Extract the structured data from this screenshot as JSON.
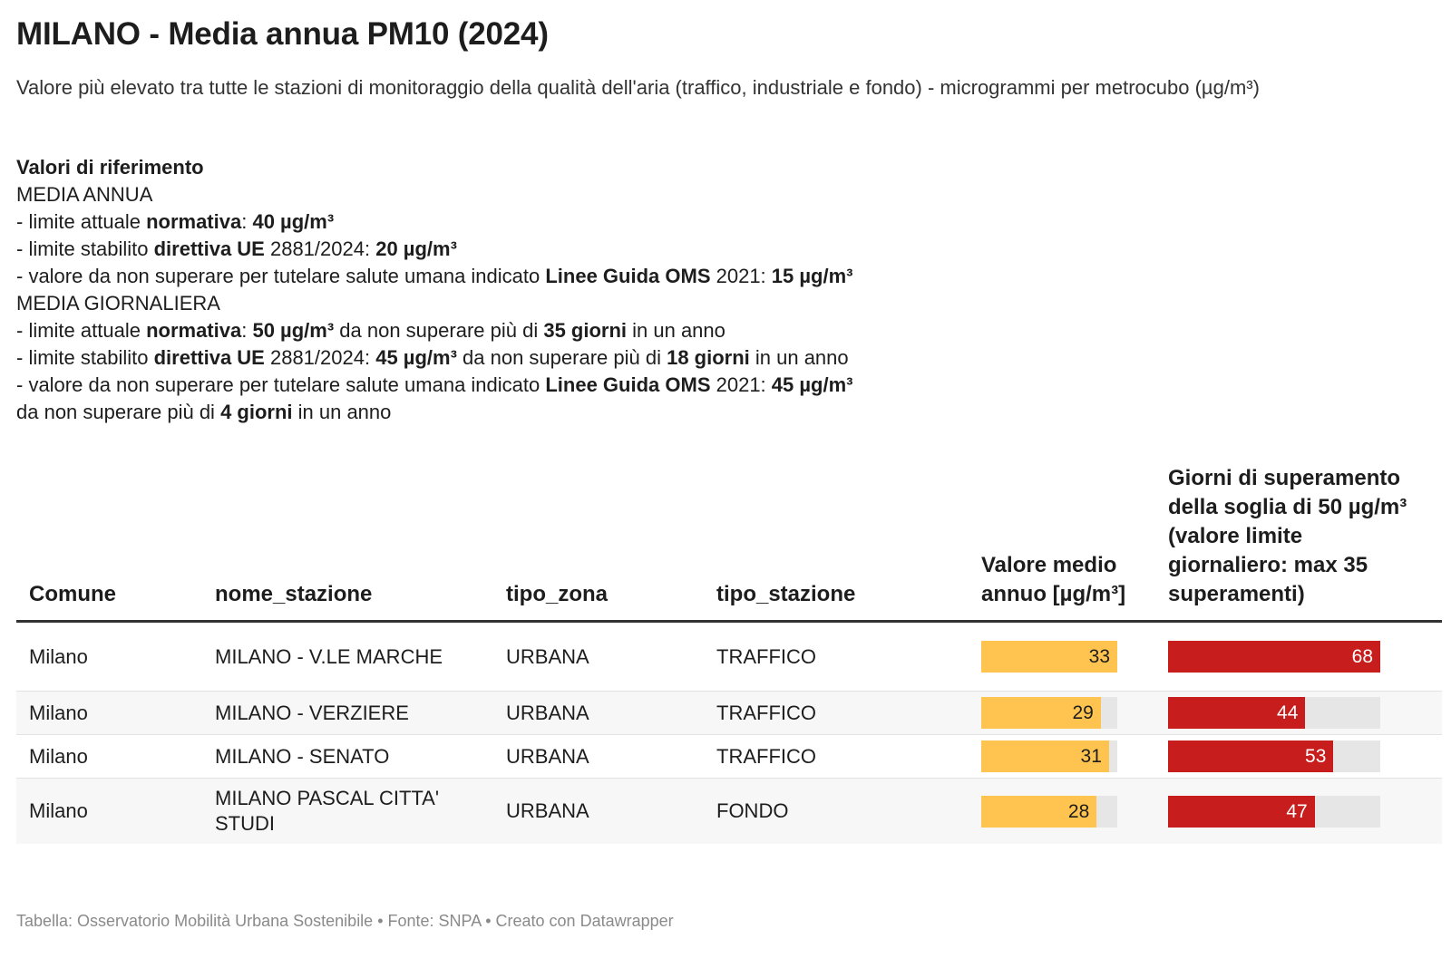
{
  "title": "MILANO - Media annua PM10 (2024)",
  "subtitle": "Valore più elevato tra tutte le stazioni di monitoraggio della qualità dell'aria (traffico, industriale e fondo) - microgrammi per metrocubo (µg/m³)",
  "refs": {
    "heading": "Valori di riferimento",
    "annual_heading": "MEDIA ANNUA",
    "a1": [
      "- limite attuale ",
      "normativa",
      ": ",
      "40 µg/m³"
    ],
    "a2": [
      "- limite stabilito ",
      "direttiva UE",
      " 2881/2024: ",
      "20 µg/m³"
    ],
    "a3": [
      "- valore da non superare per tutelare salute umana indicato ",
      "Linee Guida OMS",
      " 2021: ",
      "15 µg/m³"
    ],
    "daily_heading": "MEDIA GIORNALIERA",
    "d1": [
      "- limite attuale ",
      "normativa",
      ": ",
      "50 µg/m³",
      " da non superare più di ",
      "35 giorni",
      " in un anno"
    ],
    "d2": [
      "- limite stabilito ",
      "direttiva UE",
      " 2881/2024: ",
      "45 µg/m³",
      " da non superare più di ",
      "18 giorni",
      " in un anno"
    ],
    "d3": [
      "- valore da non superare per tutelare salute umana indicato ",
      "Linee Guida OMS",
      " 2021: ",
      "45 µg/m³"
    ],
    "d4": [
      "da non superare più di ",
      "4 giorni",
      " in un anno"
    ]
  },
  "chart_data": {
    "type": "table",
    "columns": [
      "Comune",
      "nome_stazione",
      "tipo_zona",
      "tipo_stazione",
      "Valore medio annuo [µg/m³]",
      "Giorni di superamento della soglia di 50 µg/m³ (valore limite giornaliero: max 35 superamenti)"
    ],
    "rows": [
      {
        "comune": "Milano",
        "stazione": "MILANO - V.LE MARCHE",
        "zona": "URBANA",
        "tipo": "TRAFFICO",
        "media": 33,
        "giorni": 68
      },
      {
        "comune": "Milano",
        "stazione": "MILANO - VERZIERE",
        "zona": "URBANA",
        "tipo": "TRAFFICO",
        "media": 29,
        "giorni": 44
      },
      {
        "comune": "Milano",
        "stazione": "MILANO - SENATO",
        "zona": "URBANA",
        "tipo": "TRAFFICO",
        "media": 31,
        "giorni": 53
      },
      {
        "comune": "Milano",
        "stazione": "MILANO PASCAL CITTA' STUDI",
        "zona": "URBANA",
        "tipo": "FONDO",
        "media": 28,
        "giorni": 47
      }
    ],
    "bar_max": {
      "media": 33,
      "giorni": 68
    },
    "colors": {
      "media": "#fec44f",
      "giorni": "#c71e1d",
      "track": "#e6e6e6"
    }
  },
  "footer": "Tabella: Osservatorio Mobilità Urbana Sostenibile • Fonte: SNPA • Creato con Datawrapper"
}
